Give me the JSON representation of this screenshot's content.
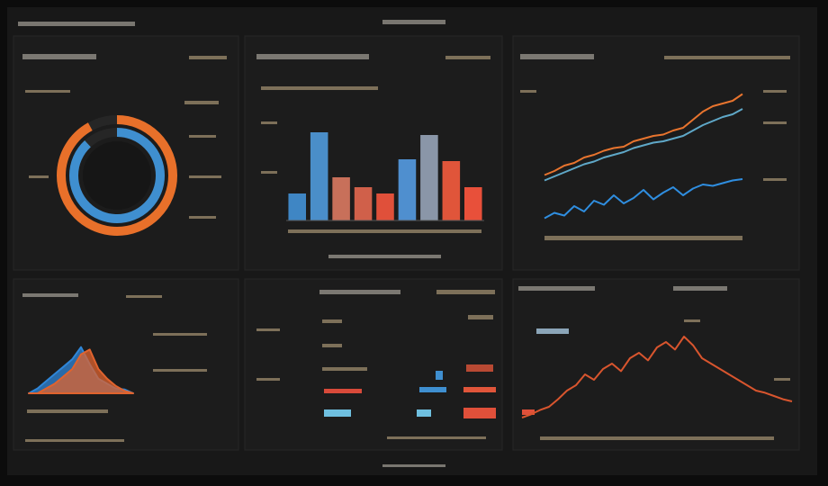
{
  "chart_data": [
    {
      "type": "donut",
      "series": [
        {
          "color": "#e8702a",
          "values": [
            92
          ]
        },
        {
          "color": "#3f8fd0",
          "values": [
            88
          ]
        }
      ]
    },
    {
      "type": "bar",
      "values": [
        30,
        98,
        48,
        37,
        30,
        68,
        95,
        66,
        37
      ],
      "colors": [
        "#3f86c4",
        "#4a8ec9",
        "#c8705a",
        "#d0604a",
        "#e0503a",
        "#4f8fcf",
        "#8a96a8",
        "#e0553a",
        "#e8503a"
      ],
      "ylim": [
        0,
        100
      ]
    },
    {
      "type": "line",
      "x": [
        0,
        1,
        2,
        3,
        4,
        5,
        6,
        7,
        8,
        9,
        10,
        11,
        12,
        13,
        14,
        15,
        16,
        17,
        18,
        19,
        20
      ],
      "xlim": [
        0,
        20
      ],
      "ylim": [
        0,
        100
      ],
      "series": [
        {
          "color": "#e8742e",
          "values": [
            37,
            40,
            44,
            46,
            50,
            52,
            55,
            57,
            58,
            62,
            64,
            66,
            67,
            70,
            72,
            78,
            84,
            88,
            90,
            92,
            97
          ]
        },
        {
          "color": "#5fa8c8",
          "values": [
            33,
            36,
            39,
            42,
            45,
            47,
            50,
            52,
            54,
            57,
            59,
            61,
            62,
            64,
            66,
            70,
            74,
            77,
            80,
            82,
            86
          ]
        },
        {
          "color": "#2f8ee0",
          "values": [
            5,
            9,
            7,
            14,
            10,
            18,
            15,
            22,
            16,
            20,
            26,
            19,
            24,
            28,
            22,
            27,
            30,
            29,
            31,
            33,
            34
          ]
        }
      ]
    },
    {
      "type": "area",
      "x": [
        0,
        1,
        2,
        3,
        4,
        5,
        6,
        7,
        8,
        9,
        10,
        11,
        12
      ],
      "xlim": [
        0,
        12
      ],
      "ylim": [
        0,
        100
      ],
      "series": [
        {
          "color": "#2f86d8",
          "values": [
            0,
            10,
            25,
            40,
            55,
            70,
            95,
            60,
            30,
            20,
            10,
            8,
            0
          ]
        },
        {
          "color": "#e0632e",
          "values": [
            0,
            0,
            10,
            20,
            35,
            50,
            80,
            90,
            50,
            30,
            15,
            5,
            0
          ]
        }
      ]
    },
    {
      "type": "line",
      "x": [
        0,
        1,
        2,
        3,
        4,
        5,
        6,
        7,
        8,
        9,
        10,
        11,
        12,
        13,
        14,
        15,
        16,
        17,
        18,
        19,
        20,
        21,
        22,
        23,
        24,
        25,
        26,
        27,
        28,
        29,
        30
      ],
      "xlim": [
        0,
        30
      ],
      "ylim": [
        0,
        100
      ],
      "series": [
        {
          "color": "#d8552e",
          "values": [
            5,
            8,
            12,
            15,
            22,
            30,
            35,
            45,
            40,
            50,
            55,
            48,
            60,
            65,
            58,
            70,
            75,
            68,
            80,
            72,
            60,
            55,
            50,
            45,
            40,
            35,
            30,
            28,
            25,
            22,
            20
          ]
        }
      ]
    }
  ]
}
